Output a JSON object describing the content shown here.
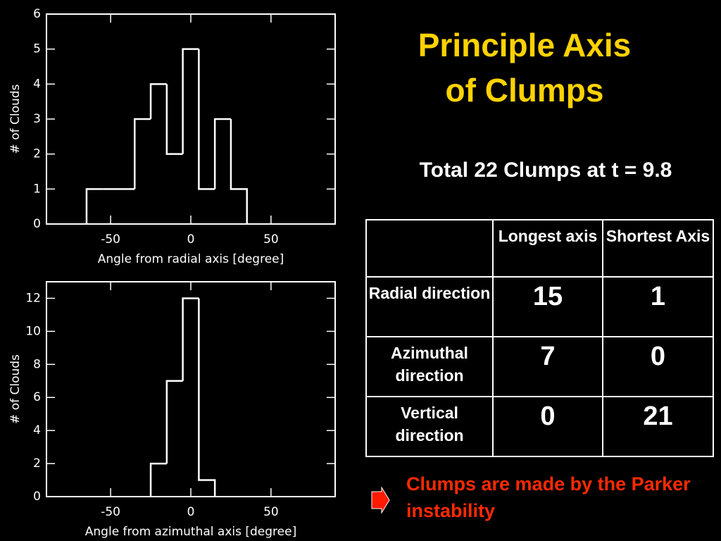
{
  "chart_data": [
    {
      "type": "histogram",
      "bins": [
        -65,
        -55,
        -45,
        -35,
        -25,
        -15,
        -5,
        5,
        15,
        25,
        35
      ],
      "values": [
        1,
        1,
        1,
        3,
        4,
        2,
        5,
        1,
        3,
        1
      ],
      "xlabel": "Angle from radial axis [degree]",
      "ylabel": "# of Clouds",
      "color": "#ffffff",
      "xlim": [
        -90,
        90
      ],
      "xticks": [
        -50,
        0,
        50
      ],
      "ylim": [
        0,
        6
      ],
      "yticks": [
        0,
        1,
        2,
        3,
        4,
        5,
        6
      ]
    },
    {
      "type": "histogram",
      "bins": [
        -25,
        -15,
        -5,
        5,
        15
      ],
      "values": [
        2,
        7,
        12,
        1
      ],
      "xlabel": "Angle from azimuthal axis [degree]",
      "ylabel": "# of Clouds",
      "color": "#ffffff",
      "xlim": [
        -90,
        90
      ],
      "xticks": [
        -50,
        0,
        50
      ],
      "ylim": [
        0,
        13
      ],
      "yticks": [
        0,
        2,
        4,
        6,
        8,
        10,
        12
      ]
    }
  ],
  "title": [
    "Principle Axis",
    "of Clumps"
  ],
  "subtitle": "Total 22 Clumps at t = 9.8",
  "table": {
    "header": [
      "Longest axis",
      "Shortest Axis"
    ],
    "rows": [
      [
        "Radial direction",
        15,
        1
      ],
      [
        "Azimuthal direction",
        7,
        0
      ],
      [
        "Vertical direction",
        0,
        21
      ]
    ]
  },
  "note": "Clumps are made by the Parker instability"
}
